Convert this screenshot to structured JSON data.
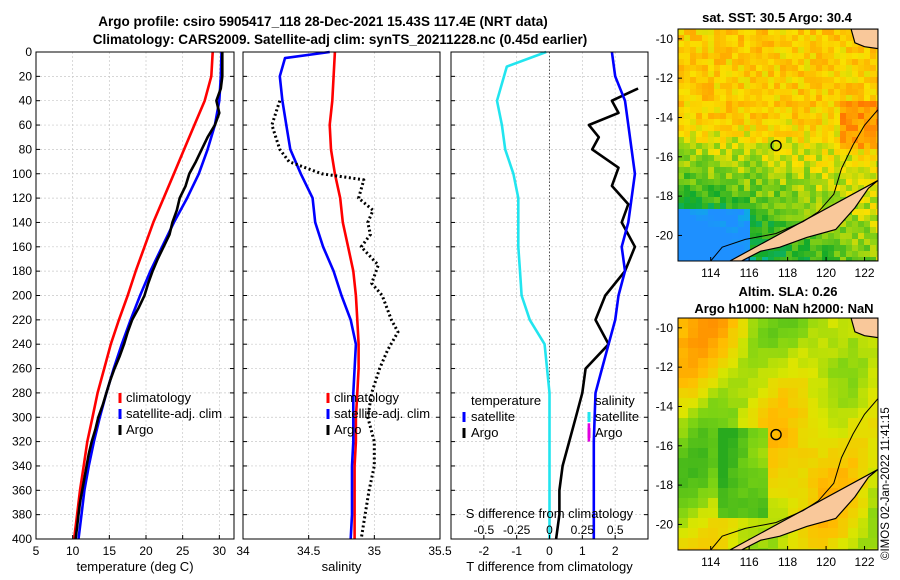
{
  "title": {
    "line1": "Argo profile: csiro 5905417_118 28-Dec-2021 15.43S 117.4E (NRT data)",
    "line2": "Climatology: CARS2009. Satellite-adj clim: synTS_20211228.nc (0.45d earlier)"
  },
  "colors": {
    "climatology": "#ff0000",
    "satellite": "#0000ff",
    "argo": "#000000",
    "cyan": "#22e5ef",
    "magenta": "#e000e0"
  },
  "chart_data": [
    {
      "type": "line",
      "id": "temperature",
      "xlabel": "temperature (deg C)",
      "ylabel": "",
      "xlim": [
        5,
        32
      ],
      "ylim": [
        400,
        0
      ],
      "xticks": [
        5,
        10,
        15,
        20,
        25,
        30
      ],
      "yticks": [
        0,
        20,
        40,
        60,
        80,
        100,
        120,
        140,
        160,
        180,
        200,
        220,
        240,
        260,
        280,
        300,
        320,
        340,
        360,
        380,
        400
      ],
      "grid": true,
      "legend": {
        "placement": "bottom-right",
        "entries": [
          "climatology",
          "satellite-adj. clim",
          "Argo"
        ]
      },
      "series": [
        {
          "name": "climatology",
          "color": "climatology",
          "style": "solid",
          "points": [
            [
              29.1,
              0
            ],
            [
              28.9,
              20
            ],
            [
              28,
              40
            ],
            [
              26.6,
              60
            ],
            [
              25.2,
              80
            ],
            [
              23.8,
              100
            ],
            [
              22.4,
              120
            ],
            [
              21,
              140
            ],
            [
              19.8,
              160
            ],
            [
              18.6,
              180
            ],
            [
              17.5,
              200
            ],
            [
              16.3,
              220
            ],
            [
              15.2,
              240
            ],
            [
              14.3,
              260
            ],
            [
              13.4,
              280
            ],
            [
              12.7,
              300
            ],
            [
              12,
              320
            ],
            [
              11.5,
              340
            ],
            [
              11,
              360
            ],
            [
              10.6,
              380
            ],
            [
              10.2,
              400
            ]
          ]
        },
        {
          "name": "satellite-adj. clim",
          "color": "satellite",
          "style": "solid",
          "points": [
            [
              30.3,
              0
            ],
            [
              30.2,
              20
            ],
            [
              30,
              40
            ],
            [
              29.4,
              60
            ],
            [
              28.4,
              80
            ],
            [
              27.2,
              100
            ],
            [
              25.6,
              120
            ],
            [
              23.8,
              140
            ],
            [
              22.2,
              160
            ],
            [
              20.6,
              180
            ],
            [
              19.2,
              200
            ],
            [
              17.9,
              220
            ],
            [
              16.7,
              240
            ],
            [
              15.6,
              260
            ],
            [
              14.6,
              280
            ],
            [
              13.7,
              300
            ],
            [
              12.9,
              320
            ],
            [
              12.2,
              340
            ],
            [
              11.6,
              360
            ],
            [
              11.2,
              380
            ],
            [
              10.8,
              400
            ]
          ]
        },
        {
          "name": "Argo",
          "color": "argo",
          "style": "solid",
          "points": [
            [
              30.4,
              0
            ],
            [
              30.4,
              20
            ],
            [
              30.2,
              30
            ],
            [
              29.6,
              40
            ],
            [
              30,
              50
            ],
            [
              29.4,
              60
            ],
            [
              28.4,
              70
            ],
            [
              27.6,
              80
            ],
            [
              26.8,
              90
            ],
            [
              25.9,
              100
            ],
            [
              25.4,
              110
            ],
            [
              24.6,
              120
            ],
            [
              24.2,
              130
            ],
            [
              23.6,
              140
            ],
            [
              23.2,
              150
            ],
            [
              22.4,
              160
            ],
            [
              21.6,
              170
            ],
            [
              20.9,
              180
            ],
            [
              20.3,
              190
            ],
            [
              19.8,
              200
            ],
            [
              19,
              210
            ],
            [
              18.1,
              220
            ],
            [
              17.5,
              230
            ],
            [
              17,
              240
            ],
            [
              16.4,
              250
            ],
            [
              15.7,
              260
            ],
            [
              15.1,
              270
            ],
            [
              14.6,
              280
            ],
            [
              14.1,
              290
            ],
            [
              13.5,
              300
            ],
            [
              13.1,
              310
            ],
            [
              12.6,
              320
            ],
            [
              12.2,
              330
            ],
            [
              11.9,
              340
            ],
            [
              11.6,
              350
            ],
            [
              11.3,
              360
            ],
            [
              11,
              370
            ],
            [
              10.8,
              380
            ],
            [
              10.6,
              390
            ],
            [
              10.4,
              400
            ]
          ]
        }
      ]
    },
    {
      "type": "line",
      "id": "salinity",
      "xlabel": "salinity",
      "xlim": [
        34,
        35.5
      ],
      "ylim": [
        400,
        0
      ],
      "xticks": [
        34,
        34.5,
        35,
        35.5
      ],
      "xticklabels": [
        "34",
        "34.5",
        "35",
        "35.5"
      ],
      "yticks": [
        0,
        20,
        40,
        60,
        80,
        100,
        120,
        140,
        160,
        180,
        200,
        220,
        240,
        260,
        280,
        300,
        320,
        340,
        360,
        380,
        400
      ],
      "grid": true,
      "legend": {
        "placement": "bottom-right",
        "entries": [
          "climatology",
          "satellite-adj. clim",
          "Argo"
        ]
      },
      "series": [
        {
          "name": "climatology",
          "color": "climatology",
          "style": "solid",
          "points": [
            [
              34.7,
              0
            ],
            [
              34.69,
              20
            ],
            [
              34.68,
              40
            ],
            [
              34.66,
              60
            ],
            [
              34.67,
              80
            ],
            [
              34.7,
              100
            ],
            [
              34.74,
              120
            ],
            [
              34.76,
              140
            ],
            [
              34.8,
              160
            ],
            [
              34.84,
              180
            ],
            [
              34.86,
              200
            ],
            [
              34.87,
              220
            ],
            [
              34.88,
              240
            ],
            [
              34.88,
              260
            ],
            [
              34.87,
              280
            ],
            [
              34.86,
              300
            ],
            [
              34.86,
              320
            ],
            [
              34.85,
              340
            ],
            [
              34.85,
              360
            ],
            [
              34.85,
              380
            ],
            [
              34.85,
              400
            ]
          ]
        },
        {
          "name": "satellite-adj. clim",
          "color": "satellite",
          "style": "solid",
          "points": [
            [
              34.66,
              0
            ],
            [
              34.32,
              5
            ],
            [
              34.28,
              20
            ],
            [
              34.3,
              40
            ],
            [
              34.33,
              60
            ],
            [
              34.36,
              80
            ],
            [
              34.44,
              100
            ],
            [
              34.53,
              120
            ],
            [
              34.55,
              140
            ],
            [
              34.61,
              160
            ],
            [
              34.69,
              180
            ],
            [
              34.75,
              200
            ],
            [
              34.82,
              220
            ],
            [
              34.86,
              240
            ],
            [
              34.85,
              260
            ],
            [
              34.84,
              280
            ],
            [
              34.84,
              300
            ],
            [
              34.84,
              320
            ],
            [
              34.83,
              340
            ],
            [
              34.83,
              360
            ],
            [
              34.83,
              380
            ],
            [
              34.82,
              400
            ]
          ]
        },
        {
          "name": "Argo",
          "color": "argo",
          "style": "dotted",
          "points": [
            [
              34.28,
              40
            ],
            [
              34.25,
              50
            ],
            [
              34.22,
              60
            ],
            [
              34.25,
              70
            ],
            [
              34.28,
              80
            ],
            [
              34.35,
              90
            ],
            [
              34.6,
              100
            ],
            [
              34.92,
              105
            ],
            [
              34.88,
              120
            ],
            [
              34.99,
              130
            ],
            [
              34.95,
              140
            ],
            [
              34.97,
              150
            ],
            [
              34.9,
              160
            ],
            [
              35.03,
              175
            ],
            [
              34.98,
              190
            ],
            [
              35.06,
              200
            ],
            [
              35.13,
              220
            ],
            [
              35.18,
              230
            ],
            [
              35.1,
              245
            ],
            [
              35.04,
              260
            ],
            [
              34.98,
              280
            ],
            [
              34.95,
              300
            ],
            [
              35,
              320
            ],
            [
              35,
              340
            ],
            [
              34.96,
              360
            ],
            [
              34.93,
              380
            ],
            [
              34.9,
              400
            ]
          ]
        }
      ]
    },
    {
      "type": "line",
      "id": "difference",
      "xlabel": "T difference from climatology",
      "xlim": [
        -3,
        3
      ],
      "ylim": [
        400,
        0
      ],
      "xticks": [
        -2,
        -1,
        0,
        1,
        2
      ],
      "secondary_axis": {
        "label": "S difference from climatology",
        "ticks": [
          -0.5,
          -0.25,
          0,
          0.25,
          0.5
        ],
        "ticklabels": [
          "-0.5",
          "-0.25",
          "0",
          "0.25",
          "0.5"
        ]
      },
      "yticks": [
        0,
        20,
        40,
        60,
        80,
        100,
        120,
        140,
        160,
        180,
        200,
        220,
        240,
        260,
        280,
        300,
        320,
        340,
        360,
        380,
        400
      ],
      "grid": true,
      "legend": {
        "placement": "bottom",
        "groups": [
          {
            "title": "temperature",
            "entries": [
              "satellite",
              "Argo"
            ]
          },
          {
            "title": "salinity",
            "entries": [
              "satellite",
              "Argo"
            ]
          }
        ]
      },
      "series": [
        {
          "name": "temperature satellite",
          "color": "cyan",
          "style": "solid",
          "points": [
            [
              -0.1,
              0
            ],
            [
              -1.3,
              12
            ],
            [
              -1.6,
              40
            ],
            [
              -1.45,
              60
            ],
            [
              -1.35,
              80
            ],
            [
              -1.1,
              100
            ],
            [
              -0.95,
              120
            ],
            [
              -0.95,
              140
            ],
            [
              -0.95,
              160
            ],
            [
              -0.9,
              180
            ],
            [
              -0.85,
              200
            ],
            [
              -0.6,
              220
            ],
            [
              -0.15,
              240
            ],
            [
              0,
              280
            ],
            [
              0,
              400
            ]
          ]
        },
        {
          "name": "temperature Argo",
          "color": "argo",
          "style": "solid",
          "points": [
            [
              2.7,
              30
            ],
            [
              1.9,
              40
            ],
            [
              2.1,
              50
            ],
            [
              1.2,
              60
            ],
            [
              1.5,
              70
            ],
            [
              1.3,
              80
            ],
            [
              2.1,
              95
            ],
            [
              1.9,
              110
            ],
            [
              2.4,
              125
            ],
            [
              2.2,
              140
            ],
            [
              2.6,
              160
            ],
            [
              2.3,
              180
            ],
            [
              1.7,
              200
            ],
            [
              1.4,
              220
            ],
            [
              1.8,
              240
            ],
            [
              1.1,
              260
            ],
            [
              1,
              280
            ],
            [
              0.8,
              300
            ],
            [
              0.6,
              320
            ],
            [
              0.4,
              340
            ],
            [
              0.3,
              360
            ],
            [
              0.3,
              380
            ],
            [
              0.2,
              400
            ]
          ]
        },
        {
          "name": "salinity satellite",
          "color": "satellite",
          "style": "solid",
          "points": [
            [
              1.9,
              0
            ],
            [
              2.0,
              20
            ],
            [
              2.3,
              40
            ],
            [
              2.4,
              60
            ],
            [
              2.5,
              80
            ],
            [
              2.6,
              100
            ],
            [
              2.5,
              120
            ],
            [
              2.4,
              140
            ],
            [
              2.2,
              160
            ],
            [
              2.3,
              180
            ],
            [
              2.1,
              200
            ],
            [
              2.0,
              220
            ],
            [
              1.8,
              240
            ],
            [
              1.6,
              260
            ],
            [
              1.4,
              280
            ],
            [
              1.35,
              320
            ],
            [
              1.35,
              360
            ],
            [
              1.35,
              400
            ]
          ]
        },
        {
          "name": "salinity Argo",
          "color": "magenta",
          "style": "solid",
          "points": [
            [
              1.2,
              305
            ],
            [
              1.2,
              320
            ]
          ]
        }
      ]
    },
    {
      "type": "heatmap",
      "id": "sst-map",
      "title": "sat. SST: 30.5 Argo: 30.4",
      "xlim": [
        112.3,
        122.7
      ],
      "ylim": [
        -21.3,
        -9.5
      ],
      "xticks": [
        114,
        116,
        118,
        120,
        122
      ],
      "yticks": [
        -10,
        -12,
        -14,
        -16,
        -18,
        -20
      ],
      "marker": {
        "lon": 117.4,
        "lat": -15.43
      }
    },
    {
      "type": "heatmap",
      "id": "sla-map",
      "title": "Altim. SLA: 0.26",
      "subtitle": "Argo h1000: NaN h2000: NaN",
      "xlim": [
        112.3,
        122.7
      ],
      "ylim": [
        -21.3,
        -9.5
      ],
      "xticks": [
        114,
        116,
        118,
        120,
        122
      ],
      "yticks": [
        -10,
        -12,
        -14,
        -16,
        -18,
        -20
      ],
      "marker": {
        "lon": 117.4,
        "lat": -15.43
      }
    }
  ],
  "stamp": "©IMOS 02-Jan-2022 11:41:15"
}
